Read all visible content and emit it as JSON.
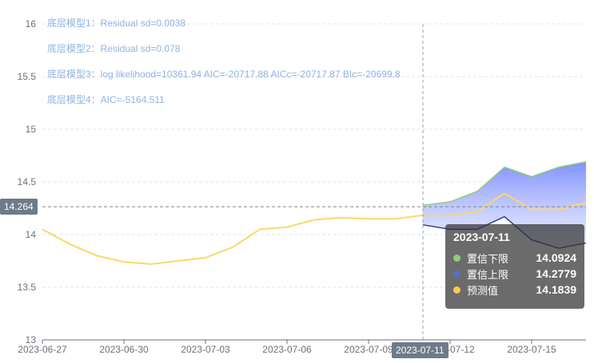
{
  "chart_data": {
    "type": "line",
    "title": "",
    "xlabel": "",
    "ylabel": "",
    "ylim": [
      13,
      16
    ],
    "yticks": [
      "13",
      "13.5",
      "14",
      "14.5",
      "15",
      "15.5",
      "16"
    ],
    "x_tick_labels": [
      "2023-06-27",
      "2023-06-30",
      "2023-07-03",
      "2023-07-06",
      "2023-07-09",
      "2023-07-12",
      "2023-07-15"
    ],
    "x": [
      "2023-06-27",
      "2023-06-28",
      "2023-06-29",
      "2023-06-30",
      "2023-07-01",
      "2023-07-02",
      "2023-07-03",
      "2023-07-04",
      "2023-07-05",
      "2023-07-06",
      "2023-07-07",
      "2023-07-08",
      "2023-07-09",
      "2023-07-10",
      "2023-07-11",
      "2023-07-12",
      "2023-07-13",
      "2023-07-14",
      "2023-07-15",
      "2023-07-16",
      "2023-07-17"
    ],
    "series": [
      {
        "name": "预测值",
        "color": "#fac858",
        "values": [
          14.05,
          13.91,
          13.8,
          13.74,
          13.72,
          13.75,
          13.78,
          13.88,
          14.05,
          14.07,
          14.14,
          14.16,
          14.15,
          14.15,
          14.1839,
          14.18,
          14.22,
          14.39,
          14.24,
          14.24,
          14.3
        ]
      },
      {
        "name": "置信上限",
        "color": "#5470c6",
        "values": [
          null,
          null,
          null,
          null,
          null,
          null,
          null,
          null,
          null,
          null,
          null,
          null,
          null,
          null,
          14.2779,
          14.31,
          14.41,
          14.64,
          14.55,
          14.64,
          14.69
        ]
      },
      {
        "name": "置信下限",
        "color": "#91cc75",
        "values": [
          null,
          null,
          null,
          null,
          null,
          null,
          null,
          null,
          null,
          null,
          null,
          null,
          null,
          null,
          14.0924,
          14.05,
          14.05,
          14.17,
          13.95,
          13.87,
          13.92
        ]
      }
    ],
    "annotations": [
      "底层模型1：Residual sd=0.0038",
      "底层模型2：Residual sd=0.078",
      "底层模型3：log likelihood=10361.94 AIC=-20717.88 AICc=-20717.87 BIc=-20699.8",
      "底层模型4：AIC=-5164.511"
    ],
    "crosshair": {
      "x": "2023-07-11",
      "y": "14.264"
    },
    "tooltip": {
      "date": "2023-07-11",
      "rows": [
        {
          "name": "置信下限",
          "value": "14.0924",
          "color": "#91cc75"
        },
        {
          "name": "置信上限",
          "value": "14.2779",
          "color": "#5470c6"
        },
        {
          "name": "预测值",
          "value": "14.1839",
          "color": "#fac858"
        }
      ]
    },
    "band_color": "#8394ff",
    "grid": true,
    "legend": "none"
  }
}
